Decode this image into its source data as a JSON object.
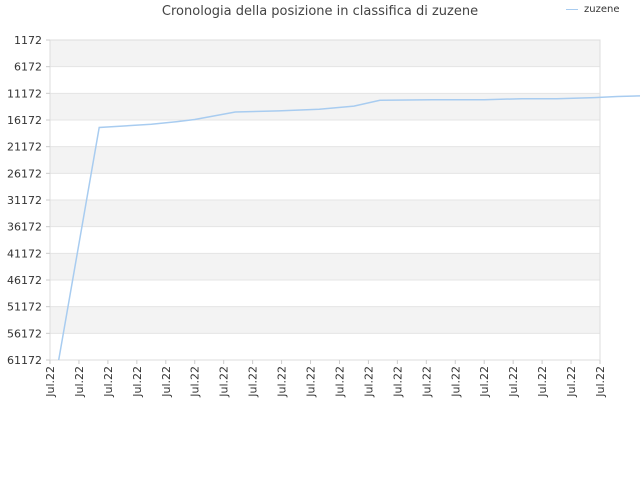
{
  "chart_data": {
    "type": "line",
    "title": "Cronologia della posizione in classifica di zuzene",
    "xlabel": "",
    "ylabel": "",
    "y_reversed": true,
    "ylim": [
      61172,
      1172
    ],
    "y_ticks": [
      "1172",
      "6172",
      "11172",
      "16172",
      "21172",
      "26172",
      "31172",
      "36172",
      "41172",
      "46172",
      "51172",
      "56172",
      "61172"
    ],
    "x_ticks": [
      "Jul.22",
      "Jul.22",
      "Jul.22",
      "Jul.22",
      "Jul.22",
      "Jul.22",
      "Jul.22",
      "Jul.22",
      "Jul.22",
      "Jul.22",
      "Jul.22",
      "Jul.22",
      "Jul.22",
      "Jul.22",
      "Jul.22",
      "Jul.22",
      "Jul.22",
      "Jul.22",
      "Jul.22",
      "Jul.22"
    ],
    "grid": true,
    "legend_position": "top-right",
    "series": [
      {
        "name": "zuzene",
        "color": "#a8ccf0",
        "x": [
          0.3,
          1.7,
          3.5,
          4.4,
          5.0,
          6.4,
          7.9,
          9.3,
          10.5,
          11.4,
          13.2,
          15.0,
          16.3,
          17.5,
          18.8,
          19.6,
          20.8,
          22.0,
          23.3,
          24.7,
          26.0,
          27.3,
          28.6,
          29.7,
          31.0,
          32.5,
          33.9,
          35.2,
          36.7,
          38.2
        ],
        "values": [
          61172,
          17572,
          16972,
          16472,
          16072,
          14672,
          14472,
          14172,
          13572,
          12472,
          12372,
          12372,
          12172,
          12172,
          11972,
          11772,
          11572,
          11372,
          11172,
          10972,
          10772,
          10572,
          10472,
          10272,
          10172,
          10072,
          9872,
          9872,
          9772,
          9672
        ]
      }
    ]
  }
}
